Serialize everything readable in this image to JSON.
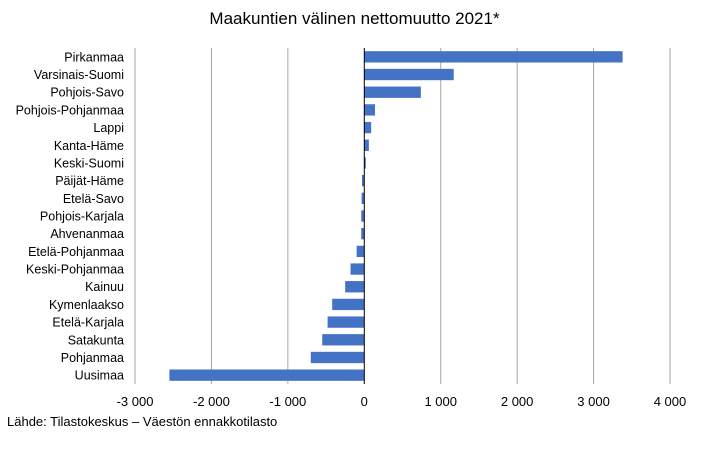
{
  "chart_data": {
    "type": "bar",
    "orientation": "horizontal",
    "title": "Maakuntien välinen nettomuutto 2021*",
    "categories": [
      "Pirkanmaa",
      "Varsinais-Suomi",
      "Pohjois-Savo",
      "Pohjois-Pohjanmaa",
      "Lappi",
      "Kanta-Häme",
      "Keski-Suomi",
      "Päijät-Häme",
      "Etelä-Savo",
      "Pohjois-Karjala",
      "Ahvenanmaa",
      "Etelä-Pohjanmaa",
      "Keski-Pohjanmaa",
      "Kainuu",
      "Kymenlaakso",
      "Etelä-Karjala",
      "Satakunta",
      "Pohjanmaa",
      "Uusimaa"
    ],
    "values": [
      3380,
      1170,
      740,
      140,
      90,
      60,
      20,
      -30,
      -35,
      -40,
      -40,
      -100,
      -180,
      -250,
      -420,
      -480,
      -550,
      -700,
      -2550
    ],
    "xlim": [
      -3000,
      4000
    ],
    "xticks": [
      -3000,
      -2000,
      -1000,
      0,
      1000,
      2000,
      3000,
      4000
    ],
    "xtick_labels": [
      "-3 000",
      "-2 000",
      "-1 000",
      "0",
      "1 000",
      "2 000",
      "3 000",
      "4 000"
    ],
    "grid": "vertical",
    "bar_color": "#4472c4",
    "gridline_color": "#a6a6a6"
  },
  "source_note": "Lähde: Tilastokeskus – Väestön ennakkotilasto"
}
